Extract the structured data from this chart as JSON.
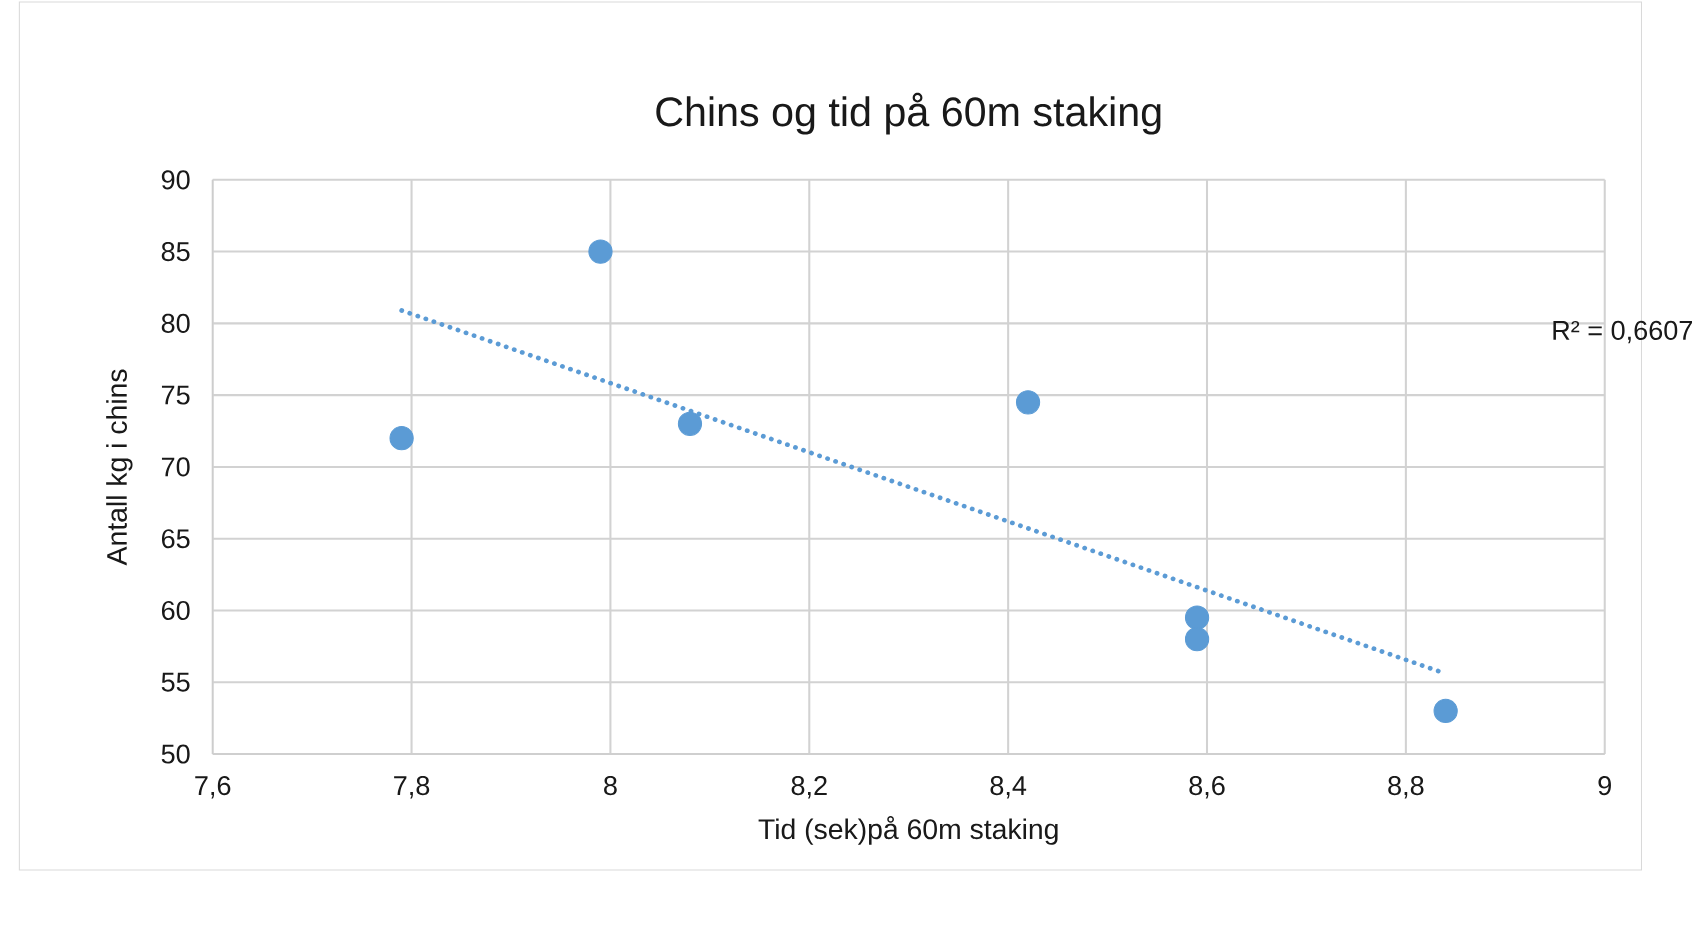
{
  "chart_data": {
    "type": "scatter",
    "title": "Chins og tid på 60m staking",
    "xlabel": "Tid (sek)på 60m staking",
    "ylabel": "Antall kg i chins",
    "xlim": [
      7.6,
      9
    ],
    "xticks": [
      {
        "value": 7.6,
        "label": "7,6"
      },
      {
        "value": 7.8,
        "label": "7,8"
      },
      8,
      {
        "value": 8.2,
        "label": "8,2"
      },
      {
        "value": 8.4,
        "label": "8,4"
      },
      {
        "value": 8.6,
        "label": "8,6"
      },
      {
        "value": 8.8,
        "label": "8,8"
      },
      9
    ],
    "ylim": [
      50,
      90
    ],
    "yticks": [
      50,
      55,
      60,
      65,
      70,
      75,
      80,
      85,
      90
    ],
    "grid": true,
    "series": [
      {
        "color": "#5b9bd5",
        "marker": "circle",
        "x": [
          7.79,
          7.99,
          8.08,
          8.42,
          8.59,
          8.59,
          8.84
        ],
        "values": [
          72,
          85,
          73,
          74.5,
          59.5,
          58,
          53
        ]
      },
      {
        "type": "line",
        "color": "#5b9bd5",
        "line_style": "dotted",
        "marker": "none",
        "x": [
          7.79,
          8.84
        ],
        "values": [
          80.9,
          55.6
        ]
      }
    ],
    "annotations": [
      "R² = 0,6607"
    ]
  }
}
